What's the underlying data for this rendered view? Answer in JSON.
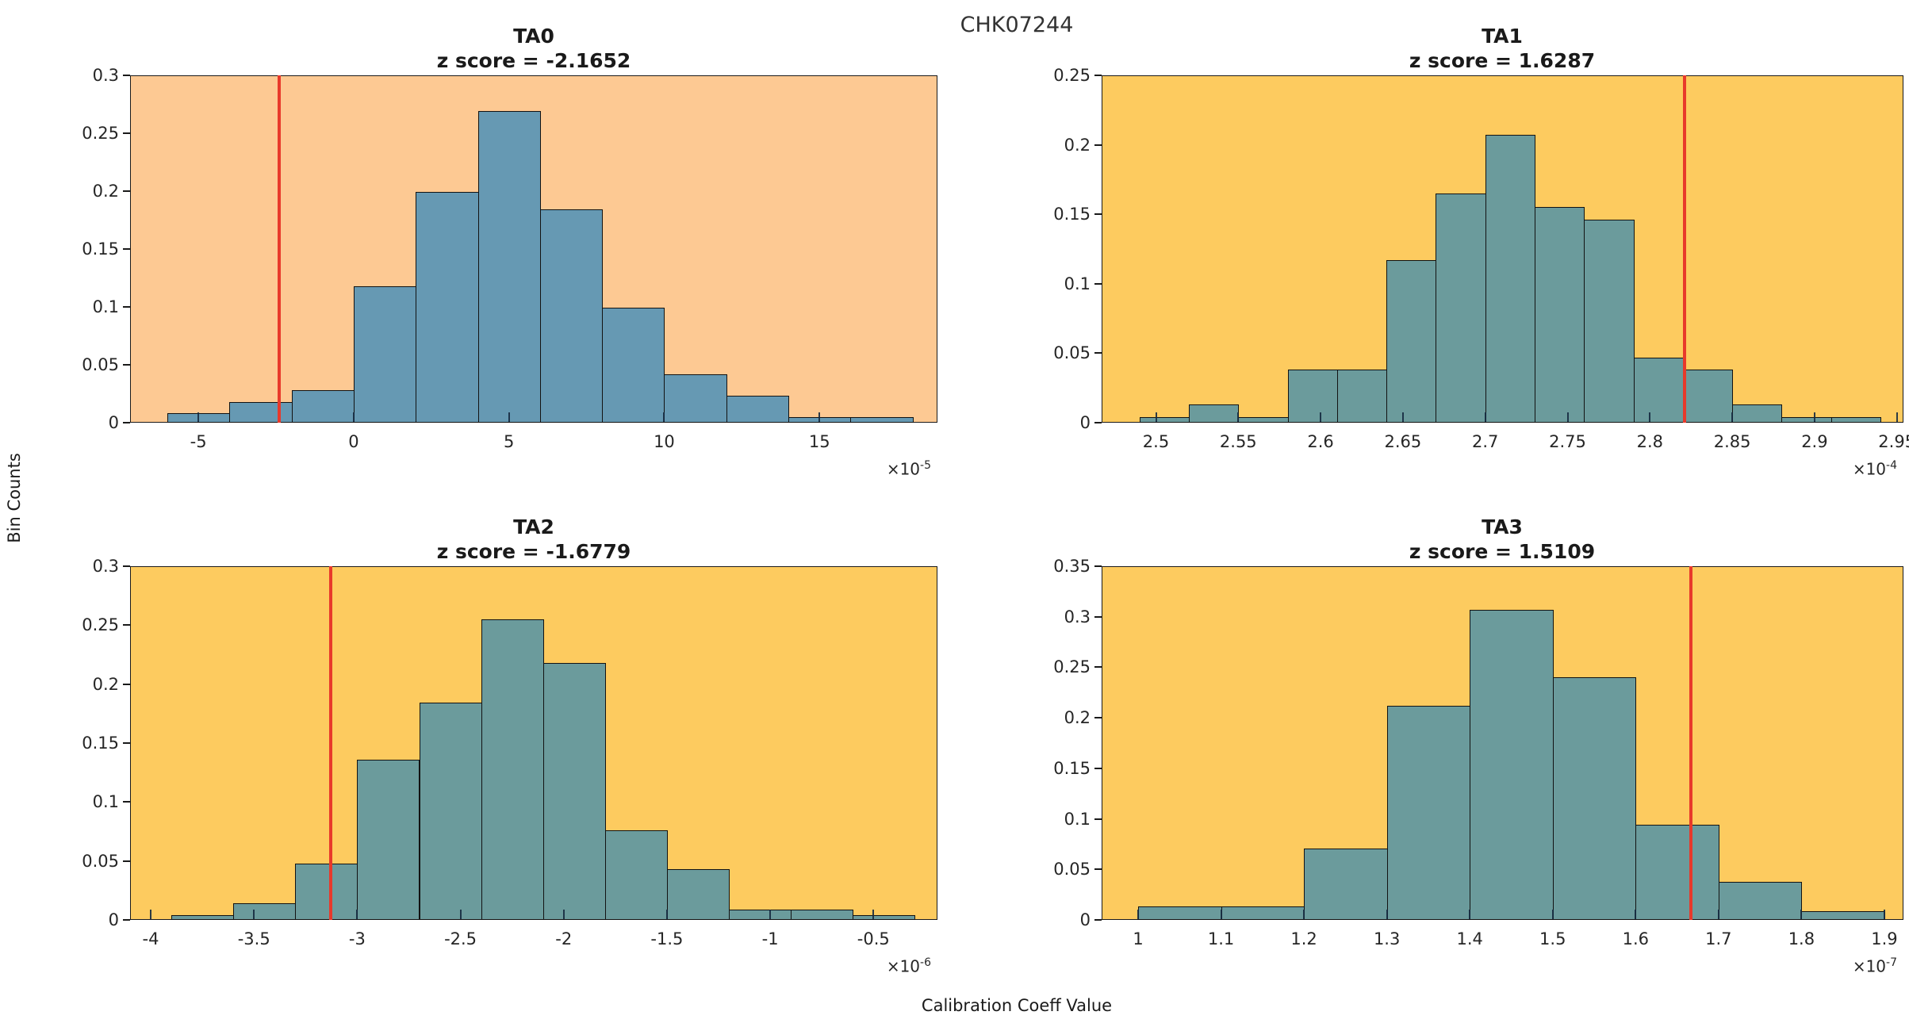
{
  "figure": {
    "title": "CHK07244",
    "ylabel": "Bin Counts",
    "xlabel": "Calibration Coeff Value"
  },
  "colors": {
    "peach_background": "#FDC993",
    "gold_background": "#FDCB5F",
    "steelblue_bar": "#6699B3",
    "teal_bar": "#6B9B9C",
    "bar_edge": "#121212",
    "red_line": "#E8392B",
    "axis_frame": "#1a1a1a",
    "tick_text": "#262626"
  },
  "chart_data": [
    {
      "id": "TA0",
      "type": "bar",
      "title": "TA0",
      "subtitle": "z score = -2.1652",
      "z_score": -2.1652,
      "background": "#FDC993",
      "bar_color": "#6699B3",
      "baseline_color": "#3E6F9E",
      "xlim": [
        -7.2,
        18.8
      ],
      "ylim": [
        0,
        0.3
      ],
      "yticks": [
        0,
        0.05,
        0.1,
        0.15,
        0.2,
        0.25,
        0.3
      ],
      "xticks": [
        -5,
        0,
        5,
        10,
        15
      ],
      "x_scale": {
        "base": "×10",
        "exp": "-5"
      },
      "bin_start": -6,
      "bin_width": 2,
      "bin_counts": [
        0.008,
        0.018,
        0.028,
        0.118,
        0.199,
        0.269,
        0.184,
        0.099,
        0.042,
        0.023,
        0.005,
        0.005
      ],
      "red_line_x": -2.4,
      "legend": "none",
      "grid": "off"
    },
    {
      "id": "TA1",
      "type": "bar",
      "title": "TA1",
      "subtitle": "z score = 1.6287",
      "z_score": 1.6287,
      "background": "#FDCB5F",
      "bar_color": "#6B9B9C",
      "baseline_color": "#3E7E85",
      "xlim": [
        2.467,
        2.954
      ],
      "ylim": [
        0,
        0.25
      ],
      "yticks": [
        0,
        0.05,
        0.1,
        0.15,
        0.2,
        0.25
      ],
      "xticks": [
        2.5,
        2.55,
        2.6,
        2.65,
        2.7,
        2.75,
        2.8,
        2.85,
        2.9,
        2.95
      ],
      "x_scale": {
        "base": "×10",
        "exp": "-4"
      },
      "bin_start": 2.49,
      "bin_width": 0.03,
      "bin_counts": [
        0.004,
        0.013,
        0.004,
        0.038,
        0.038,
        0.117,
        0.165,
        0.207,
        0.155,
        0.146,
        0.047,
        0.038,
        0.013,
        0.004,
        0.004
      ],
      "red_line_x": 2.821,
      "legend": "none",
      "grid": "off"
    },
    {
      "id": "TA2",
      "type": "bar",
      "title": "TA2",
      "subtitle": "z score = -1.6779",
      "z_score": -1.6779,
      "background": "#FDCB5F",
      "bar_color": "#6B9B9C",
      "baseline_color": "#3E7E85",
      "xlim": [
        -4.1,
        -0.19
      ],
      "ylim": [
        0,
        0.3
      ],
      "yticks": [
        0,
        0.05,
        0.1,
        0.15,
        0.2,
        0.25,
        0.3
      ],
      "xticks": [
        -4,
        -3.5,
        -3,
        -2.5,
        -2,
        -1.5,
        -1,
        -0.5
      ],
      "x_scale": {
        "base": "×10",
        "exp": "-6"
      },
      "bin_start": -3.9,
      "bin_width": 0.3,
      "bin_counts": [
        0.004,
        0.014,
        0.048,
        0.136,
        0.184,
        0.255,
        0.218,
        0.076,
        0.043,
        0.009,
        0.009,
        0.004
      ],
      "red_line_x": -3.13,
      "legend": "none",
      "grid": "off"
    },
    {
      "id": "TA3",
      "type": "bar",
      "title": "TA3",
      "subtitle": "z score = 1.5109",
      "z_score": 1.5109,
      "background": "#FDCB5F",
      "bar_color": "#6B9B9C",
      "baseline_color": "#3E7E85",
      "xlim": [
        0.956,
        1.923
      ],
      "ylim": [
        0,
        0.35
      ],
      "yticks": [
        0,
        0.05,
        0.1,
        0.15,
        0.2,
        0.25,
        0.3,
        0.35
      ],
      "xticks": [
        1,
        1.1,
        1.2,
        1.3,
        1.4,
        1.5,
        1.6,
        1.7,
        1.8,
        1.9
      ],
      "x_scale": {
        "base": "×10",
        "exp": "-7"
      },
      "bin_start": 1.0,
      "bin_width": 0.1,
      "bin_counts": [
        0.013,
        0.013,
        0.071,
        0.212,
        0.307,
        0.24,
        0.094,
        0.038,
        0.009
      ],
      "red_line_x": 1.667,
      "legend": "none",
      "grid": "off"
    }
  ]
}
